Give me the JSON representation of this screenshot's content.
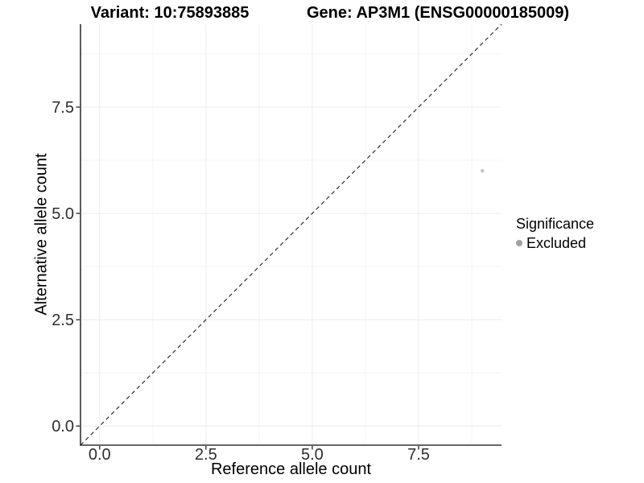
{
  "chart_data": {
    "type": "scatter",
    "titles": {
      "variant": "Variant: 10:75893885",
      "gene": "Gene: AP3M1 (ENSG00000185009)"
    },
    "xlabel": "Reference allele count",
    "ylabel": "Alternative allele count",
    "xlim": [
      -0.45,
      9.45
    ],
    "ylim": [
      -0.45,
      9.45
    ],
    "x_ticks": {
      "values": [
        0,
        2.5,
        5,
        7.5
      ],
      "labels": [
        "0.0",
        "2.5",
        "5.0",
        "7.5"
      ]
    },
    "y_ticks": {
      "values": [
        0,
        2.5,
        5,
        7.5
      ],
      "labels": [
        "0.0",
        "2.5",
        "5.0",
        "7.5"
      ]
    },
    "minor_grid": [
      1.25,
      3.75,
      6.25,
      8.75
    ],
    "grid": "on",
    "series": [
      {
        "name": "Excluded",
        "marker": "circle",
        "color": "#c6c6c6",
        "points": [
          {
            "x": 9,
            "y": 6
          }
        ]
      }
    ],
    "reference_line": {
      "kind": "identity y=x",
      "style": "dashed",
      "x": [
        -0.45,
        9.45
      ],
      "y": [
        -0.45,
        9.45
      ]
    },
    "legend": {
      "title": "Significance",
      "position": "right",
      "items": [
        {
          "label": "Excluded",
          "key_color": "#a0a0a0"
        }
      ]
    },
    "colors": {
      "background": "#ffffff",
      "grid_major": "#ececec",
      "grid_minor": "#f4f4f4",
      "axis_line": "#333333",
      "tick_mark": "#333333",
      "tick_text": "#2e2e2e",
      "dashed_line": "#2b2b2b"
    }
  }
}
